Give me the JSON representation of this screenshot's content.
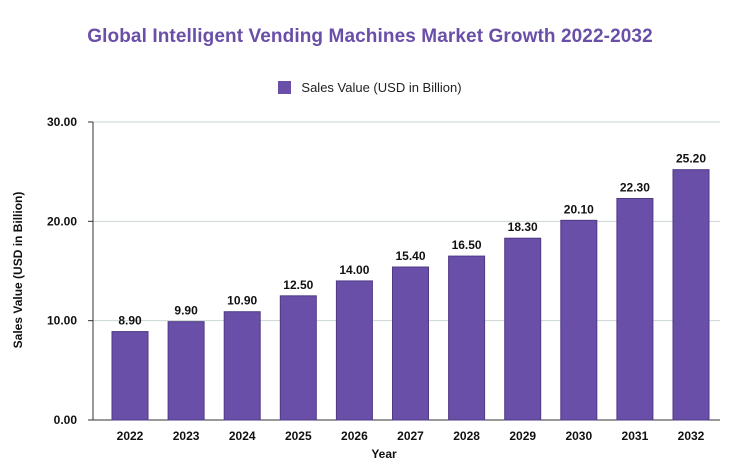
{
  "chart_data": {
    "type": "bar",
    "title": "Global Intelligent Vending Machines Market Growth 2022-2032",
    "xlabel": "Year",
    "ylabel": "Sales Value (USD in Billion)",
    "categories": [
      "2022",
      "2023",
      "2024",
      "2025",
      "2026",
      "2027",
      "2028",
      "2029",
      "2030",
      "2031",
      "2032"
    ],
    "series": [
      {
        "name": "Sales Value (USD in Billion)",
        "values": [
          8.9,
          9.9,
          10.9,
          12.5,
          14.0,
          15.4,
          16.5,
          18.3,
          20.1,
          22.3,
          25.2
        ],
        "labels": [
          "8.90",
          "9.90",
          "10.90",
          "12.50",
          "14.00",
          "15.40",
          "16.50",
          "18.30",
          "20.10",
          "22.30",
          "25.20"
        ]
      }
    ],
    "ylim": [
      0,
      30
    ],
    "yticks": [
      0,
      10,
      20,
      30
    ],
    "ytick_labels": [
      "0.00",
      "10.00",
      "20.00",
      "30.00"
    ],
    "grid": true,
    "legend_position": "top-center"
  },
  "colors": {
    "bar": "#6a4fa8",
    "bar_stroke": "#4e3a85",
    "title": "#6a4fa8",
    "grid": "#c9d6d4",
    "axis": "#333333",
    "first_label": "#1f4d55"
  }
}
